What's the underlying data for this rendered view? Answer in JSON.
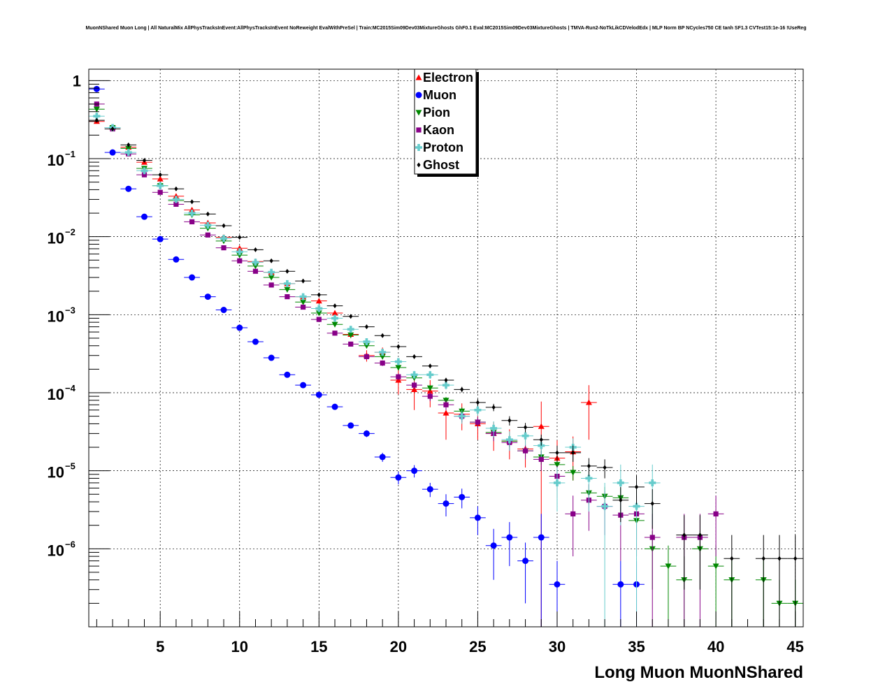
{
  "chart_data": {
    "type": "scatter",
    "title": "MuonNShared Muon Long | All NaturalMix AllPhysTracksInEvent:AllPhysTracksInEvent NoReweight EvalWithPreSel | Train:MC2015Sim09Dev03MixtureGhosts GhF0.1 Eval:MC2015Sim09Dev03MixtureGhosts | TMVA-Run2-NoTkLikCDVelodEdx | MLP Norm BP NCycles750 CE tanh SF1.3 CVTest15:1e-16 !UseReg",
    "xlabel": "Long Muon MuonNShared",
    "ylabel": "",
    "xlim": [
      0.5,
      45.5
    ],
    "ylim": [
      1e-07,
      1.4
    ],
    "log_y": true,
    "grid": true,
    "legend_position": "top-center",
    "x_ticks": [
      "5",
      "10",
      "15",
      "20",
      "25",
      "30",
      "35",
      "40",
      "45"
    ],
    "y_ticks": [
      {
        "base": "1",
        "exp": ""
      },
      {
        "base": "10",
        "exp": "−1"
      },
      {
        "base": "10",
        "exp": "−2"
      },
      {
        "base": "10",
        "exp": "−3"
      },
      {
        "base": "10",
        "exp": "−4"
      },
      {
        "base": "10",
        "exp": "−5"
      },
      {
        "base": "10",
        "exp": "−6"
      }
    ],
    "series": [
      {
        "name": "Electron",
        "color": "#ff0000",
        "marker": "triangle-up",
        "x": [
          1,
          2,
          3,
          4,
          5,
          6,
          7,
          8,
          9,
          10,
          11,
          12,
          13,
          14,
          15,
          16,
          17,
          18,
          19,
          20,
          21,
          22,
          23,
          24,
          25,
          26,
          27,
          28,
          29,
          30,
          31,
          32
        ],
        "y": [
          0.3,
          0.25,
          0.14,
          0.09,
          0.055,
          0.033,
          0.022,
          0.015,
          0.0098,
          0.0071,
          0.0048,
          0.0035,
          0.0025,
          0.0017,
          0.0015,
          0.00105,
          0.00056,
          0.0003,
          0.00033,
          0.000145,
          0.00011,
          0.000105,
          5.5e-05,
          5.3e-05,
          4e-05,
          3e-05,
          2.4e-05,
          1.9e-05,
          3.7e-05,
          1.45e-05,
          1.75e-05,
          7.5e-05
        ],
        "err": [
          0.01,
          0.008,
          0.005,
          0.003,
          0.002,
          0.0012,
          0.0008,
          0.0005,
          0.0004,
          0.0003,
          0.0002,
          0.00015,
          0.00012,
          0.0001,
          0.0001,
          8e-05,
          6e-05,
          5e-05,
          5e-05,
          5e-05,
          5e-05,
          4e-05,
          3e-05,
          2e-05,
          1.5e-05,
          1.2e-05,
          1e-05,
          8e-06,
          4e-05,
          1e-05,
          1e-05,
          5e-05
        ]
      },
      {
        "name": "Muon",
        "color": "#0000ff",
        "marker": "circle",
        "x": [
          1,
          2,
          3,
          4,
          5,
          6,
          7,
          8,
          9,
          10,
          11,
          12,
          13,
          14,
          15,
          16,
          17,
          18,
          19,
          20,
          21,
          22,
          23,
          24,
          25,
          26,
          27,
          28,
          29,
          30,
          34,
          35
        ],
        "y": [
          0.78,
          0.12,
          0.041,
          0.018,
          0.0093,
          0.0051,
          0.003,
          0.0017,
          0.00115,
          0.00068,
          0.00045,
          0.00028,
          0.00017,
          0.000125,
          9.4e-05,
          6.6e-05,
          3.8e-05,
          3e-05,
          1.5e-05,
          8.2e-06,
          1e-05,
          5.8e-06,
          3.8e-06,
          4.6e-06,
          2.5e-06,
          1.1e-06,
          1.4e-06,
          7e-07,
          1.4e-06,
          3.5e-07,
          3.5e-07,
          3.5e-07
        ],
        "err": [
          0.02,
          0.004,
          0.0015,
          0.0006,
          0.0003,
          0.00018,
          0.0001,
          6e-05,
          4e-05,
          3e-05,
          2e-05,
          1.2e-05,
          8e-06,
          6e-06,
          5e-06,
          4e-06,
          3e-06,
          3e-06,
          2e-06,
          1.5e-06,
          1.8e-06,
          1.2e-06,
          1.2e-06,
          1.3e-06,
          1e-06,
          7e-07,
          8e-07,
          5e-07,
          1.4e-06,
          3.5e-07,
          3.5e-07,
          3.5e-07
        ]
      },
      {
        "name": "Pion",
        "color": "#008800",
        "marker": "triangle-down",
        "x": [
          1,
          2,
          3,
          4,
          5,
          6,
          7,
          8,
          9,
          10,
          11,
          12,
          13,
          14,
          15,
          16,
          17,
          18,
          19,
          20,
          21,
          22,
          23,
          24,
          25,
          26,
          27,
          28,
          29,
          30,
          31,
          32,
          33,
          34,
          35,
          36,
          37,
          38,
          39,
          40,
          41,
          43,
          44,
          45
        ],
        "y": [
          0.43,
          0.25,
          0.135,
          0.075,
          0.045,
          0.029,
          0.019,
          0.0128,
          0.0088,
          0.0058,
          0.0042,
          0.003,
          0.0021,
          0.00145,
          0.00105,
          0.00075,
          0.00055,
          0.0004,
          0.00029,
          0.00021,
          0.000155,
          0.000115,
          8e-05,
          5.8e-05,
          4.2e-05,
          3.1e-05,
          2.4e-05,
          1.8e-05,
          1.5e-05,
          1.2e-05,
          9.5e-06,
          5.2e-06,
          4.7e-06,
          4.5e-06,
          2.3e-06,
          1e-06,
          6e-07,
          4e-07,
          1e-06,
          6e-07,
          4e-07,
          4e-07,
          2e-07,
          2e-07
        ],
        "err": [
          0.01,
          0.006,
          0.004,
          0.002,
          0.0015,
          0.001,
          0.0006,
          0.0004,
          0.0003,
          0.0002,
          0.00015,
          0.0001,
          8e-05,
          6e-05,
          5e-05,
          4e-05,
          3e-05,
          2.5e-05,
          2e-05,
          1.5e-05,
          1.2e-05,
          1e-05,
          8e-06,
          7e-06,
          6e-06,
          5e-06,
          4e-06,
          3e-06,
          3e-06,
          2.5e-06,
          2e-06,
          1.5e-06,
          1.5e-06,
          1.5e-06,
          1e-06,
          7e-07,
          5e-07,
          4e-07,
          7e-07,
          5e-07,
          4e-07,
          4e-07,
          2e-07,
          2e-07
        ]
      },
      {
        "name": "Kaon",
        "color": "#880088",
        "marker": "square",
        "x": [
          1,
          2,
          3,
          4,
          5,
          6,
          7,
          8,
          9,
          10,
          11,
          12,
          13,
          14,
          15,
          16,
          17,
          18,
          19,
          20,
          21,
          22,
          23,
          24,
          25,
          26,
          27,
          28,
          29,
          30,
          31,
          32,
          33,
          34,
          35,
          36,
          38,
          39,
          40
        ],
        "y": [
          0.5,
          0.24,
          0.115,
          0.062,
          0.037,
          0.026,
          0.0155,
          0.0105,
          0.0072,
          0.0049,
          0.0036,
          0.0024,
          0.0017,
          0.00125,
          0.00087,
          0.00058,
          0.00042,
          0.00029,
          0.00024,
          0.00016,
          0.000125,
          9e-05,
          7e-05,
          5e-05,
          4.2e-05,
          3e-05,
          2.3e-05,
          1.8e-05,
          1.4e-05,
          8.5e-06,
          2.8e-06,
          4.2e-06,
          3.5e-06,
          2.7e-06,
          2.8e-06,
          1.4e-06,
          1.4e-06,
          1.4e-06,
          2.8e-06
        ],
        "err": [
          0.012,
          0.006,
          0.004,
          0.002,
          0.0012,
          0.0009,
          0.0005,
          0.0004,
          0.0003,
          0.0002,
          0.00015,
          0.0001,
          8e-05,
          6e-05,
          5e-05,
          4e-05,
          3e-05,
          2.5e-05,
          2e-05,
          1.6e-05,
          1.4e-05,
          1.2e-05,
          1e-05,
          8e-06,
          7e-06,
          6e-06,
          5e-06,
          4e-06,
          4e-06,
          3e-06,
          2e-06,
          2.5e-06,
          2e-06,
          2e-06,
          2e-06,
          1.4e-06,
          1.4e-06,
          1.4e-06,
          2e-06
        ]
      },
      {
        "name": "Proton",
        "color": "#66cccc",
        "marker": "cross",
        "x": [
          1,
          2,
          3,
          4,
          5,
          6,
          7,
          8,
          9,
          10,
          11,
          12,
          13,
          14,
          15,
          16,
          17,
          18,
          19,
          20,
          21,
          22,
          23,
          24,
          25,
          26,
          27,
          28,
          29,
          30,
          31,
          32,
          33,
          34,
          35,
          36
        ],
        "y": [
          0.35,
          0.25,
          0.12,
          0.07,
          0.045,
          0.03,
          0.02,
          0.014,
          0.0095,
          0.0064,
          0.0047,
          0.0035,
          0.0025,
          0.0017,
          0.0012,
          0.0009,
          0.00065,
          0.00045,
          0.00033,
          0.00025,
          0.00017,
          0.00017,
          0.000125,
          5e-05,
          6e-05,
          3.5e-05,
          2.5e-05,
          2.8e-05,
          2.1e-05,
          7e-06,
          2e-05,
          8e-06,
          3.5e-06,
          7e-06,
          3.5e-06,
          7e-06
        ],
        "err": [
          0.01,
          0.007,
          0.004,
          0.0025,
          0.0015,
          0.001,
          0.0007,
          0.0005,
          0.0003,
          0.00025,
          0.0002,
          0.00015,
          0.00012,
          0.0001,
          8e-05,
          6e-05,
          5e-05,
          4e-05,
          3e-05,
          2.5e-05,
          2e-05,
          2e-05,
          1.5e-05,
          1e-05,
          1e-05,
          8e-06,
          7e-06,
          7e-06,
          6e-06,
          4e-06,
          6e-06,
          5e-06,
          3.5e-06,
          5e-06,
          3.5e-06,
          5e-06
        ]
      },
      {
        "name": "Ghost",
        "color": "#000000",
        "marker": "diamond",
        "x": [
          1,
          2,
          3,
          4,
          5,
          6,
          7,
          8,
          9,
          10,
          11,
          12,
          13,
          14,
          15,
          16,
          17,
          18,
          19,
          20,
          21,
          22,
          23,
          24,
          25,
          26,
          27,
          28,
          29,
          30,
          31,
          32,
          33,
          34,
          35,
          36,
          38,
          39,
          41,
          43,
          44,
          45
        ],
        "y": [
          0.31,
          0.24,
          0.15,
          0.095,
          0.062,
          0.041,
          0.028,
          0.0195,
          0.0138,
          0.0098,
          0.0068,
          0.0049,
          0.0036,
          0.0027,
          0.0018,
          0.0013,
          0.00095,
          0.0007,
          0.00054,
          0.00039,
          0.00029,
          0.00022,
          0.000145,
          0.00011,
          7.5e-05,
          6.5e-05,
          4.4e-05,
          3.6e-05,
          2.5e-05,
          1.7e-05,
          1.7e-05,
          1.15e-05,
          1.1e-05,
          4.2e-06,
          6.2e-06,
          3.8e-06,
          1.5e-06,
          1.5e-06,
          7.5e-07,
          7.5e-07,
          7.5e-07,
          7.5e-07
        ],
        "err": [
          0.008,
          0.005,
          0.003,
          0.002,
          0.0012,
          0.0008,
          0.0005,
          0.0004,
          0.0003,
          0.0002,
          0.00015,
          0.0001,
          8e-05,
          6e-05,
          5e-05,
          4e-05,
          3e-05,
          2.5e-05,
          2e-05,
          1.6e-05,
          1.4e-05,
          1.2e-05,
          1e-05,
          9e-06,
          8e-06,
          7e-06,
          6e-06,
          5e-06,
          4e-06,
          4e-06,
          4e-06,
          3e-06,
          3e-06,
          2e-06,
          2.5e-06,
          2e-06,
          1.2e-06,
          1.2e-06,
          7.5e-07,
          7.5e-07,
          7.5e-07,
          7.5e-07
        ]
      }
    ]
  }
}
